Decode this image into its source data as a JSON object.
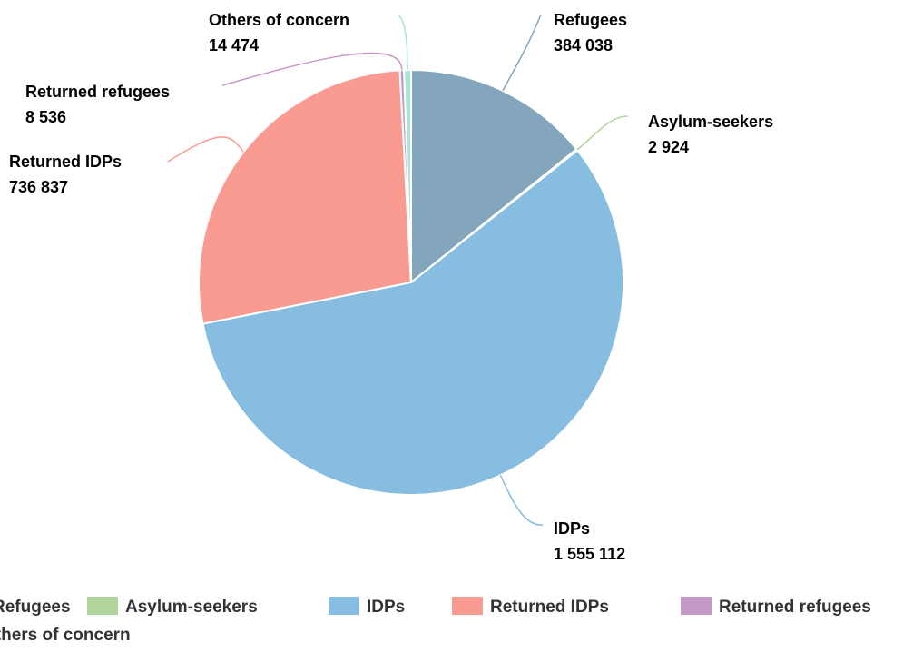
{
  "chart_data": {
    "type": "pie",
    "title": "",
    "series": [
      {
        "name": "Refugees",
        "value": 384038,
        "value_label": "384 038",
        "color": "#84a6bd"
      },
      {
        "name": "Asylum-seekers",
        "value": 2924,
        "value_label": "2 924",
        "color": "#b2d59e"
      },
      {
        "name": "IDPs",
        "value": 1555112,
        "value_label": "1 555 112",
        "color": "#86bde0"
      },
      {
        "name": "Returned IDPs",
        "value": 736837,
        "value_label": "736 837",
        "color": "#f99b91"
      },
      {
        "name": "Returned refugees",
        "value": 8536,
        "value_label": "8 536",
        "color": "#c598c6"
      },
      {
        "name": "Others of concern",
        "value": 14474,
        "value_label": "14 474",
        "color": "#a8e7d8"
      }
    ],
    "legend": {
      "position": "bottom",
      "items": [
        "Refugees",
        "Asylum-seekers",
        "IDPs",
        "Returned IDPs",
        "Returned refugees",
        "Others of concern"
      ]
    }
  }
}
